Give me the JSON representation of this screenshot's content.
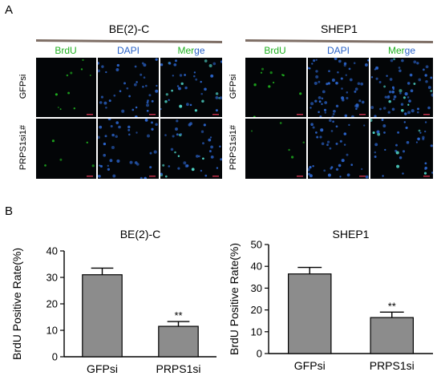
{
  "panel_a": {
    "letter": "A",
    "groups": [
      {
        "title": "BE(2)-C",
        "channels": {
          "brdu": "BrdU",
          "dapi": "DAPI",
          "merge_a": "Mer",
          "merge_b": "ge"
        },
        "rows": [
          "GFPsi",
          "PRPS1si1#"
        ]
      },
      {
        "title": "SHEP1",
        "channels": {
          "brdu": "BrdU",
          "dapi": "DAPI",
          "merge_a": "Mer",
          "merge_b": "ge"
        },
        "rows": [
          "GFPsi",
          "PRPS1si1#"
        ]
      }
    ]
  },
  "panel_b": {
    "letter": "B"
  },
  "colors": {
    "brdu": "#1fb01f",
    "dapi": "#2b63c8",
    "bar": "#8c8c8c"
  },
  "chart_data": [
    {
      "type": "bar",
      "title": "BE(2)-C",
      "categories": [
        "GFPsi",
        "PRPS1si"
      ],
      "values": [
        31,
        11.5
      ],
      "errors": [
        2.5,
        1.8
      ],
      "annotations": [
        "",
        "**"
      ],
      "ylabel": "BrdU Positive Rate(%)",
      "ylim": [
        0,
        40
      ],
      "yticks": [
        "0",
        "10",
        "20",
        "30",
        "40"
      ],
      "grid": false
    },
    {
      "type": "bar",
      "title": "SHEP1",
      "categories": [
        "GFPsi",
        "PRPS1si"
      ],
      "values": [
        36.5,
        16.5
      ],
      "errors": [
        3,
        2.5
      ],
      "annotations": [
        "",
        "**"
      ],
      "ylabel": "BrdU Positive Rate(%)",
      "ylim": [
        0,
        50
      ],
      "yticks": [
        "0",
        "10",
        "20",
        "30",
        "40",
        "50"
      ],
      "grid": false
    }
  ]
}
